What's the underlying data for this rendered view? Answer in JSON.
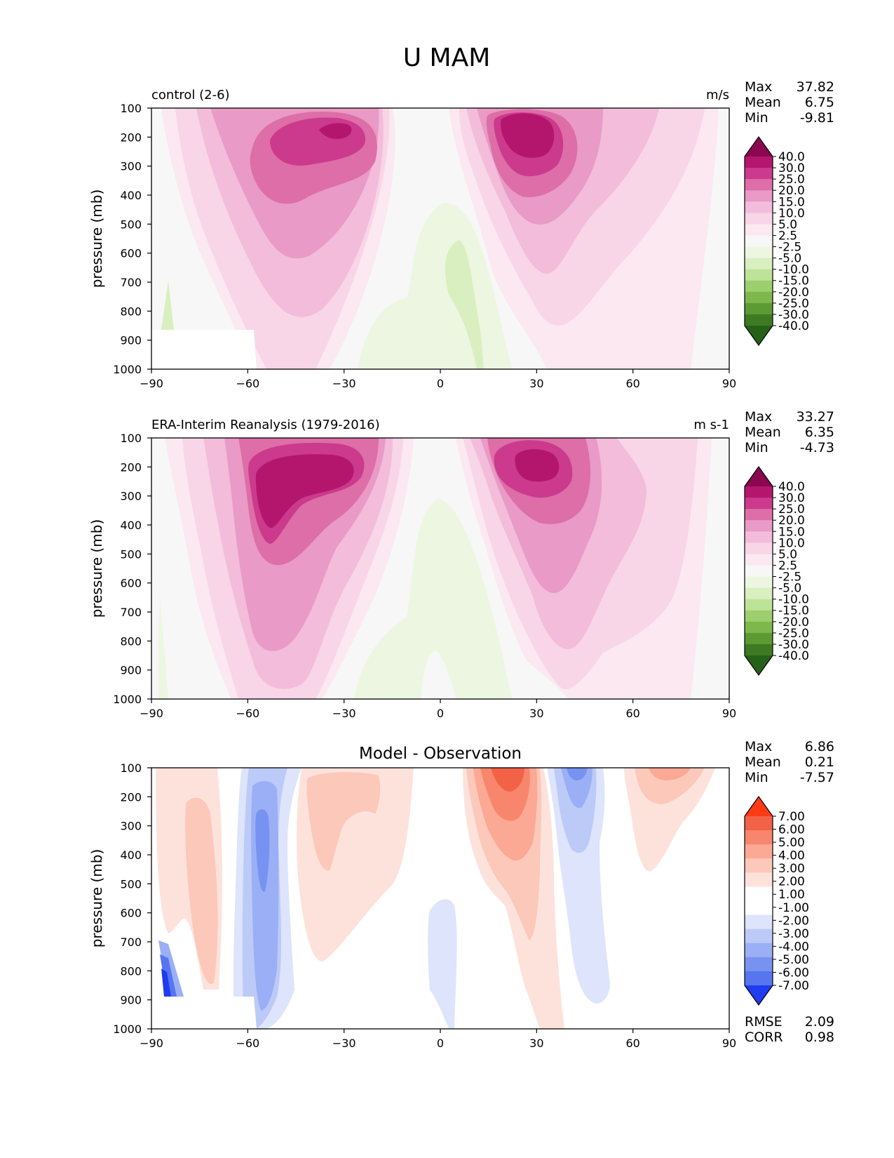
{
  "figure_title": "U MAM",
  "colors": {
    "pink": [
      "#f7f7f7",
      "#fbe8f1",
      "#f8d5e7",
      "#f2bcda",
      "#e99ac6",
      "#dd6ea7",
      "#cb3a8c",
      "#b4166e",
      "#8b0750"
    ],
    "green": [
      "#f7f7f7",
      "#edf6e1",
      "#d9efc0",
      "#bde398",
      "#9dcf6e",
      "#7eb84c",
      "#5c9a33",
      "#3d7a22",
      "#266119"
    ],
    "diff_red": [
      "#ffffff",
      "#fde2dc",
      "#fcc8ba",
      "#fba894",
      "#f8866c",
      "#f26247",
      "#ff3a14"
    ],
    "diff_blue": [
      "#ffffff",
      "#dde4fb",
      "#bccaf8",
      "#9aaff5",
      "#7892f2",
      "#5675ef",
      "#1f3cf0"
    ]
  },
  "chart_data": [
    {
      "type": "contour",
      "title": "control (2-6)",
      "units": "m/s",
      "xlabel": "",
      "ylabel": "pressure (mb)",
      "xlim": [
        -90,
        90
      ],
      "ylim": [
        1000,
        100
      ],
      "xticks": [
        "−90",
        "−60",
        "−30",
        "0",
        "30",
        "60",
        "90"
      ],
      "yticks": [
        "100",
        "200",
        "300",
        "400",
        "500",
        "600",
        "700",
        "800",
        "900",
        "1000"
      ],
      "stats": [
        {
          "label": "Max",
          "value": "37.82"
        },
        {
          "label": "Mean",
          "value": "6.75"
        },
        {
          "label": "Min",
          "value": "-9.81"
        }
      ],
      "colorbar_labels": [
        "40.0",
        "30.0",
        "25.0",
        "20.0",
        "15.0",
        "10.0",
        "5.0",
        "2.5",
        "-2.5",
        "-5.0",
        "-10.0",
        "-15.0",
        "-20.0",
        "-25.0",
        "-30.0",
        "-40.0"
      ],
      "jets": [
        {
          "lat": -35,
          "pressure": 200,
          "max": 37.8
        },
        {
          "lat": 27,
          "pressure": 200,
          "max": 35
        }
      ]
    },
    {
      "type": "contour",
      "title": "ERA-Interim Reanalysis (1979-2016)",
      "units": "m s-1",
      "xlabel": "",
      "ylabel": "pressure (mb)",
      "xlim": [
        -90,
        90
      ],
      "ylim": [
        1000,
        100
      ],
      "xticks": [
        "−90",
        "−60",
        "−30",
        "0",
        "30",
        "60",
        "90"
      ],
      "yticks": [
        "100",
        "200",
        "300",
        "400",
        "500",
        "600",
        "700",
        "800",
        "900",
        "1000"
      ],
      "stats": [
        {
          "label": "Max",
          "value": "33.27"
        },
        {
          "label": "Mean",
          "value": "6.35"
        },
        {
          "label": "Min",
          "value": "-4.73"
        }
      ],
      "colorbar_labels": [
        "40.0",
        "30.0",
        "25.0",
        "20.0",
        "15.0",
        "10.0",
        "5.0",
        "2.5",
        "-2.5",
        "-5.0",
        "-10.0",
        "-15.0",
        "-20.0",
        "-25.0",
        "-30.0",
        "-40.0"
      ],
      "jets": [
        {
          "lat": -45,
          "pressure": 250,
          "max": 30
        },
        {
          "lat": 29,
          "pressure": 200,
          "max": 33.3
        }
      ]
    },
    {
      "type": "contour",
      "title": "Model - Observation",
      "units": "",
      "xlabel": "",
      "ylabel": "pressure (mb)",
      "xlim": [
        -90,
        90
      ],
      "ylim": [
        1000,
        100
      ],
      "xticks": [
        "−90",
        "−60",
        "−30",
        "0",
        "30",
        "60",
        "90"
      ],
      "yticks": [
        "100",
        "200",
        "300",
        "400",
        "500",
        "600",
        "700",
        "800",
        "900",
        "1000"
      ],
      "stats": [
        {
          "label": "Max",
          "value": "6.86"
        },
        {
          "label": "Mean",
          "value": "0.21"
        },
        {
          "label": "Min",
          "value": "-7.57"
        }
      ],
      "metrics": [
        {
          "label": "RMSE",
          "value": "2.09"
        },
        {
          "label": "CORR",
          "value": "0.98"
        }
      ],
      "colorbar_labels": [
        "7.00",
        "6.00",
        "5.00",
        "4.00",
        "3.00",
        "2.00",
        "1.00",
        "-1.00",
        "-2.00",
        "-3.00",
        "-4.00",
        "-5.00",
        "-6.00",
        "-7.00"
      ]
    }
  ]
}
